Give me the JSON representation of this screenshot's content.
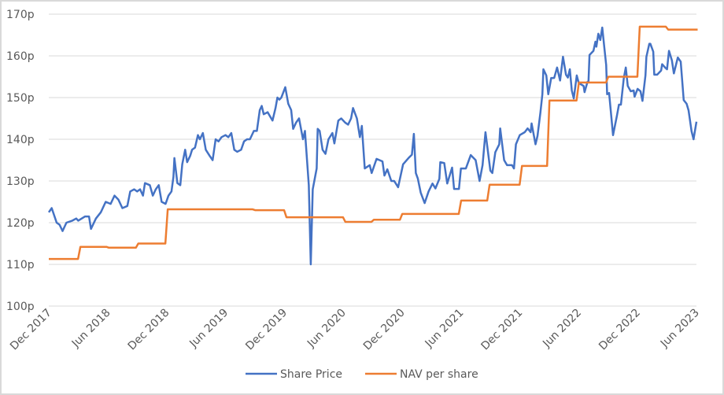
{
  "chart_data": {
    "type": "line",
    "title": "",
    "xlabel": "",
    "ylabel": "",
    "x_unit": "months since Dec 2017",
    "x_range": [
      0,
      66
    ],
    "ylim": [
      100,
      170
    ],
    "y_ticks": [
      100,
      110,
      120,
      130,
      140,
      150,
      160,
      170
    ],
    "y_tick_suffix": "p",
    "x_tick_labels": [
      "Dec 2017",
      "Jun 2018",
      "Dec 2018",
      "Jun 2019",
      "Dec 2019",
      "Jun 2020",
      "Dec 2020",
      "Jun 2021",
      "Dec 2021",
      "Jun 2022",
      "Dec 2022",
      "Jun 2023"
    ],
    "x_tick_positions": [
      0,
      6,
      12,
      18,
      24,
      30,
      36,
      42,
      48,
      54,
      60,
      66
    ],
    "grid": "horizontal",
    "legend_position": "bottom",
    "series": [
      {
        "name": "Share Price",
        "color": "#4472C4",
        "style": "line",
        "points": [
          [
            0,
            122.5
          ],
          [
            0.3,
            123.5
          ],
          [
            0.8,
            120
          ],
          [
            1.1,
            119.5
          ],
          [
            1.4,
            118
          ],
          [
            1.8,
            120
          ],
          [
            2.4,
            120.5
          ],
          [
            2.8,
            121
          ],
          [
            3.0,
            120.5
          ],
          [
            3.7,
            121.5
          ],
          [
            4.1,
            121.5
          ],
          [
            4.3,
            118.5
          ],
          [
            4.8,
            121
          ],
          [
            5.3,
            122.5
          ],
          [
            5.8,
            125
          ],
          [
            6.3,
            124.5
          ],
          [
            6.7,
            126.5
          ],
          [
            7.1,
            125.5
          ],
          [
            7.5,
            123.5
          ],
          [
            8.0,
            124
          ],
          [
            8.3,
            127.5
          ],
          [
            8.7,
            128
          ],
          [
            9.0,
            127.5
          ],
          [
            9.3,
            128
          ],
          [
            9.6,
            126.5
          ],
          [
            9.8,
            129.5
          ],
          [
            10.3,
            129
          ],
          [
            10.6,
            126.5
          ],
          [
            10.9,
            128
          ],
          [
            11.2,
            129
          ],
          [
            11.5,
            125
          ],
          [
            11.9,
            124.5
          ],
          [
            12.2,
            126.5
          ],
          [
            12.5,
            127.5
          ],
          [
            12.7,
            131
          ],
          [
            12.8,
            135.5
          ],
          [
            13.1,
            129.5
          ],
          [
            13.4,
            129
          ],
          [
            13.6,
            134
          ],
          [
            13.9,
            137.5
          ],
          [
            14.1,
            134.5
          ],
          [
            14.4,
            136
          ],
          [
            14.6,
            137.5
          ],
          [
            14.9,
            138
          ],
          [
            15.2,
            141
          ],
          [
            15.4,
            140
          ],
          [
            15.7,
            141.5
          ],
          [
            16.0,
            137.5
          ],
          [
            16.4,
            136
          ],
          [
            16.7,
            135
          ],
          [
            17.0,
            140
          ],
          [
            17.3,
            139.5
          ],
          [
            17.6,
            140.5
          ],
          [
            18.0,
            141
          ],
          [
            18.3,
            140.5
          ],
          [
            18.6,
            141.5
          ],
          [
            18.9,
            137.5
          ],
          [
            19.2,
            137
          ],
          [
            19.6,
            137.5
          ],
          [
            19.9,
            139.5
          ],
          [
            20.2,
            140
          ],
          [
            20.5,
            140
          ],
          [
            20.9,
            142
          ],
          [
            21.2,
            142
          ],
          [
            21.5,
            147
          ],
          [
            21.7,
            148
          ],
          [
            21.9,
            146
          ],
          [
            22.3,
            146.5
          ],
          [
            22.8,
            144.5
          ],
          [
            23.1,
            147.5
          ],
          [
            23.3,
            150
          ],
          [
            23.5,
            149.5
          ],
          [
            23.7,
            150
          ],
          [
            24.1,
            152.5
          ],
          [
            24.4,
            148.5
          ],
          [
            24.7,
            147
          ],
          [
            24.9,
            142.5
          ],
          [
            25.2,
            144
          ],
          [
            25.5,
            145
          ],
          [
            25.7,
            142.5
          ],
          [
            25.9,
            140
          ],
          [
            26.1,
            142
          ],
          [
            26.5,
            129
          ],
          [
            26.7,
            110
          ],
          [
            26.9,
            128
          ],
          [
            27.3,
            133
          ],
          [
            27.4,
            142.5
          ],
          [
            27.6,
            142
          ],
          [
            27.9,
            137.5
          ],
          [
            28.2,
            136.5
          ],
          [
            28.5,
            140
          ],
          [
            28.9,
            141.5
          ],
          [
            29.1,
            139
          ],
          [
            29.5,
            144.5
          ],
          [
            29.8,
            145
          ],
          [
            30.2,
            144
          ],
          [
            30.5,
            143.5
          ],
          [
            30.8,
            145
          ],
          [
            31.0,
            147.5
          ],
          [
            31.4,
            145
          ],
          [
            31.7,
            140.5
          ],
          [
            31.9,
            143.2
          ],
          [
            32.2,
            133
          ],
          [
            32.7,
            133.8
          ],
          [
            32.9,
            131.9
          ],
          [
            33.4,
            135.3
          ],
          [
            34.0,
            134.7
          ],
          [
            34.2,
            131.3
          ],
          [
            34.5,
            132.8
          ],
          [
            34.9,
            130
          ],
          [
            35.2,
            130
          ],
          [
            35.6,
            128.5
          ],
          [
            36.1,
            134
          ],
          [
            36.7,
            135.6
          ],
          [
            37.0,
            136.3
          ],
          [
            37.2,
            141.3
          ],
          [
            37.4,
            131.9
          ],
          [
            37.6,
            130.6
          ],
          [
            37.9,
            127.2
          ],
          [
            38.3,
            124.7
          ],
          [
            38.7,
            127.5
          ],
          [
            39.1,
            129.4
          ],
          [
            39.4,
            128.2
          ],
          [
            39.8,
            130.5
          ],
          [
            39.9,
            134.5
          ],
          [
            40.3,
            134.3
          ],
          [
            40.6,
            129.4
          ],
          [
            41.1,
            133.2
          ],
          [
            41.3,
            128.1
          ],
          [
            41.8,
            128.1
          ],
          [
            42.0,
            133
          ],
          [
            42.5,
            133
          ],
          [
            43.0,
            136.2
          ],
          [
            43.5,
            135
          ],
          [
            43.9,
            130
          ],
          [
            44.2,
            133.8
          ],
          [
            44.5,
            141.7
          ],
          [
            45.0,
            132.5
          ],
          [
            45.2,
            131.9
          ],
          [
            45.5,
            136.9
          ],
          [
            45.9,
            138.8
          ],
          [
            46.0,
            142.6
          ],
          [
            46.4,
            135
          ],
          [
            46.7,
            133.8
          ],
          [
            47.2,
            133.8
          ],
          [
            47.4,
            133
          ],
          [
            47.6,
            138.8
          ],
          [
            48.0,
            141
          ],
          [
            48.5,
            141.7
          ],
          [
            48.8,
            142.6
          ],
          [
            49.1,
            141.7
          ],
          [
            49.2,
            143.8
          ],
          [
            49.6,
            138.8
          ],
          [
            49.8,
            140.8
          ],
          [
            50.1,
            146.4
          ],
          [
            50.3,
            150.8
          ],
          [
            50.4,
            156.8
          ],
          [
            50.7,
            155.3
          ],
          [
            50.9,
            150.8
          ],
          [
            51.2,
            154.7
          ],
          [
            51.5,
            154.7
          ],
          [
            51.8,
            157.2
          ],
          [
            52.1,
            154.1
          ],
          [
            52.4,
            159.8
          ],
          [
            52.7,
            155.5
          ],
          [
            52.9,
            154.8
          ],
          [
            53.1,
            156.8
          ],
          [
            53.3,
            151.7
          ],
          [
            53.5,
            149.8
          ],
          [
            53.8,
            155.3
          ],
          [
            54.0,
            153.5
          ],
          [
            54.5,
            152.8
          ],
          [
            54.6,
            151.3
          ],
          [
            54.9,
            153.8
          ],
          [
            55.0,
            153.8
          ],
          [
            55.1,
            160.2
          ],
          [
            55.5,
            161.2
          ],
          [
            55.7,
            163.4
          ],
          [
            55.8,
            162.2
          ],
          [
            56.0,
            165.3
          ],
          [
            56.2,
            163.8
          ],
          [
            56.4,
            166.8
          ],
          [
            56.6,
            162.2
          ],
          [
            56.8,
            157.8
          ],
          [
            56.9,
            150.8
          ],
          [
            57.1,
            151.1
          ],
          [
            57.5,
            141
          ],
          [
            57.9,
            145.7
          ],
          [
            58.1,
            148.3
          ],
          [
            58.3,
            148.3
          ],
          [
            58.6,
            154.7
          ],
          [
            58.8,
            157.2
          ],
          [
            59.0,
            152.8
          ],
          [
            59.3,
            151.5
          ],
          [
            59.6,
            151.7
          ],
          [
            59.7,
            150.2
          ],
          [
            60.0,
            152.1
          ],
          [
            60.3,
            151.5
          ],
          [
            60.5,
            149.2
          ],
          [
            60.8,
            155.3
          ],
          [
            60.9,
            159.8
          ],
          [
            61.2,
            162.9
          ],
          [
            61.3,
            162.9
          ],
          [
            61.6,
            161
          ],
          [
            61.7,
            155.5
          ],
          [
            62.0,
            155.5
          ],
          [
            62.4,
            156.5
          ],
          [
            62.5,
            158
          ],
          [
            62.8,
            157.2
          ],
          [
            63.0,
            156.8
          ],
          [
            63.2,
            161.2
          ],
          [
            63.5,
            158.9
          ],
          [
            63.7,
            155.8
          ],
          [
            64.1,
            159.6
          ],
          [
            64.4,
            158.6
          ],
          [
            64.7,
            149.4
          ],
          [
            65.0,
            148.5
          ],
          [
            65.2,
            146.9
          ],
          [
            65.5,
            141.9
          ],
          [
            65.7,
            140
          ],
          [
            66.0,
            144.2
          ]
        ]
      },
      {
        "name": "NAV per share",
        "color": "#ED7D31",
        "style": "step",
        "points": [
          [
            0,
            111.3
          ],
          [
            3.1,
            114.2
          ],
          [
            6.0,
            114.0
          ],
          [
            9.0,
            115.0
          ],
          [
            12.0,
            123.2
          ],
          [
            20.9,
            123.0
          ],
          [
            24.1,
            121.3
          ],
          [
            30.1,
            120.2
          ],
          [
            33.0,
            120.7
          ],
          [
            35.9,
            122.1
          ],
          [
            41.9,
            125.3
          ],
          [
            44.8,
            129.1
          ],
          [
            48.1,
            133.6
          ],
          [
            50.9,
            149.3
          ],
          [
            53.9,
            153.6
          ],
          [
            56.9,
            155.0
          ],
          [
            60.1,
            167.0
          ],
          [
            63.0,
            166.3
          ],
          [
            66.0,
            166.3
          ]
        ]
      }
    ]
  }
}
